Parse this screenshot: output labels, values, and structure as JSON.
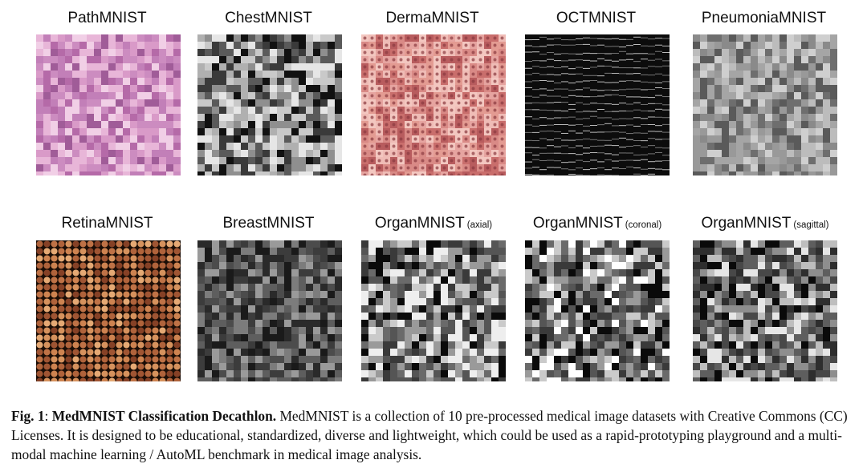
{
  "figure": {
    "panels": [
      {
        "id": "path",
        "title": "PathMNIST",
        "subtitle": "",
        "palette": [
          "#c27fb8",
          "#d99ac8",
          "#b56aa8",
          "#e8b6d8",
          "#f1cfe6",
          "#a05c98",
          "#cc8cc0"
        ]
      },
      {
        "id": "chest",
        "title": "ChestMNIST",
        "subtitle": "",
        "palette": [
          "#111111",
          "#5a5a5a",
          "#8f8f8f",
          "#c9c9c9",
          "#e6e6e6",
          "#3a3a3a",
          "#b0b0b0"
        ]
      },
      {
        "id": "derma",
        "title": "DermaMNIST",
        "subtitle": "",
        "palette": [
          "#d98a86",
          "#e6a4a0",
          "#c96e6c",
          "#efbcb6",
          "#b85c5e",
          "#e39b92",
          "#f3c7c0"
        ]
      },
      {
        "id": "oct",
        "title": "OCTMNIST",
        "subtitle": "",
        "palette": [
          "#0c0c0c",
          "#1c1c1c",
          "#2a2a2a",
          "#101010",
          "#353535",
          "#161616",
          "#222222"
        ]
      },
      {
        "id": "pneumonia",
        "title": "PneumoniaMNIST",
        "subtitle": "",
        "palette": [
          "#6e6e6e",
          "#8a8a8a",
          "#a5a5a5",
          "#bcbcbc",
          "#cfcfcf",
          "#5a5a5a",
          "#999999"
        ]
      },
      {
        "id": "retina",
        "title": "RetinaMNIST",
        "subtitle": "",
        "palette": [
          "#c8784a",
          "#e09a62",
          "#a85a36",
          "#f0b27a",
          "#8c4528",
          "#d88a54",
          "#b8683e"
        ]
      },
      {
        "id": "breast",
        "title": "BreastMNIST",
        "subtitle": "",
        "palette": [
          "#1a1a1a",
          "#3c3c3c",
          "#5e5e5e",
          "#7c7c7c",
          "#9a9a9a",
          "#2a2a2a",
          "#4c4c4c"
        ]
      },
      {
        "id": "organ-axial",
        "title": "OrganMNIST",
        "subtitle": "(axial)",
        "palette": [
          "#0a0a0a",
          "#3a3a3a",
          "#6a6a6a",
          "#9a9a9a",
          "#cacaca",
          "#eeeeee",
          "#555555"
        ]
      },
      {
        "id": "organ-coronal",
        "title": "OrganMNIST",
        "subtitle": "(coronal)",
        "palette": [
          "#0a0a0a",
          "#3a3a3a",
          "#6a6a6a",
          "#9a9a9a",
          "#cacaca",
          "#ffffff",
          "#555555"
        ]
      },
      {
        "id": "organ-sagittal",
        "title": "OrganMNIST",
        "subtitle": "(sagittal)",
        "palette": [
          "#0a0a0a",
          "#2e2e2e",
          "#5e5e5e",
          "#8e8e8e",
          "#bebebe",
          "#e6e6e6",
          "#484848"
        ]
      }
    ]
  },
  "caption": {
    "label": "Fig. 1",
    "colon": ": ",
    "heading": "MedMNIST Classification Decathlon.",
    "body": " MedMNIST is a collection of 10 pre-processed medical image datasets with Creative Commons (CC) Licenses. It is designed to be educational, standardized, diverse and lightweight, which could be used as a rapid-prototyping playground and a multi-modal machine learning / AutoML benchmark in medical image analysis."
  }
}
